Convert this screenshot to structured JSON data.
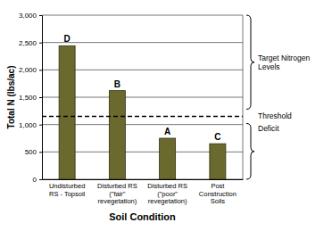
{
  "chart_data": {
    "type": "bar",
    "x_label": "Soil Condition",
    "y_label": "Total N (lbs/ac)",
    "categories": [
      "Undisturbed\nRS - Topsoil",
      "Disturbed RS\n(\"fair\"\nrevegetation)",
      "Disturbed RS\n(\"poor\"\nrevegetation)",
      "Post\nConstruction\nSoils"
    ],
    "values": [
      2440,
      1620,
      750,
      650
    ],
    "annotations": [
      "D",
      "B",
      "A",
      "C"
    ],
    "color": "#6b6a2e",
    "ylim": [
      0,
      3000
    ],
    "yticks": [
      0,
      500,
      {
        "value": 1000,
        "label": "1,000"
      },
      {
        "value": 1500,
        "label": "1,500"
      },
      {
        "value": 2000,
        "label": "2,000"
      },
      {
        "value": 2500,
        "label": "2,500"
      },
      {
        "value": 3000,
        "label": "3,000"
      }
    ],
    "grid": true,
    "threshold": 1150,
    "threshold_label": "Threshold",
    "target_label": "Target Nitrogen\nLevels",
    "deficit_label": "Deficit"
  }
}
